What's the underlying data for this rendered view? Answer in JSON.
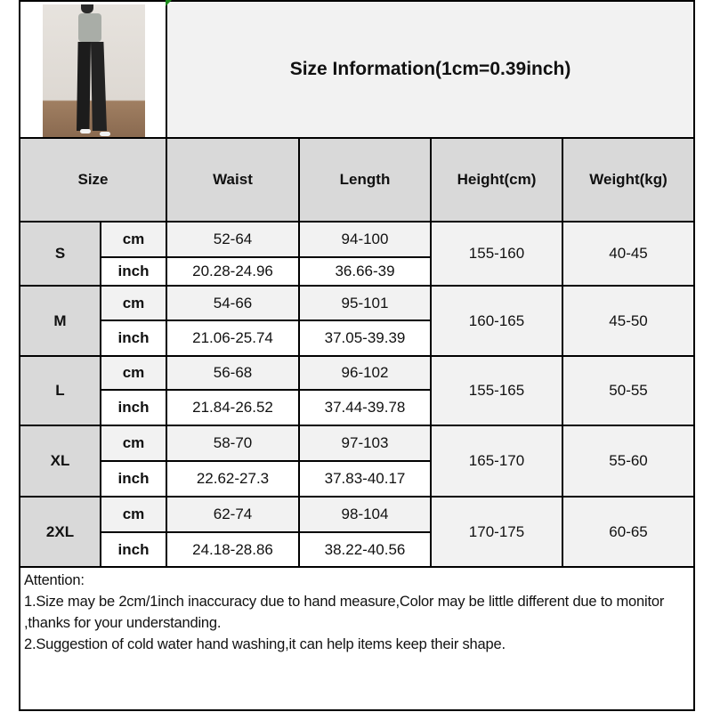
{
  "title": "Size Information(1cm=0.39inch)",
  "headers": {
    "size": "Size",
    "waist": "Waist",
    "length": "Length",
    "height": "Height(cm)",
    "weight": "Weight(kg)"
  },
  "units": {
    "cm": "cm",
    "inch": "inch"
  },
  "rows": [
    {
      "size": "S",
      "waist_cm": "52-64",
      "waist_inch": "20.28-24.96",
      "length_cm": "94-100",
      "length_inch": "36.66-39",
      "height": "155-160",
      "weight": "40-45"
    },
    {
      "size": "M",
      "waist_cm": "54-66",
      "waist_inch": "21.06-25.74",
      "length_cm": "95-101",
      "length_inch": "37.05-39.39",
      "height": "160-165",
      "weight": "45-50"
    },
    {
      "size": "L",
      "waist_cm": "56-68",
      "waist_inch": "21.84-26.52",
      "length_cm": "96-102",
      "length_inch": "37.44-39.78",
      "height": "155-165",
      "weight": "50-55"
    },
    {
      "size": "XL",
      "waist_cm": "58-70",
      "waist_inch": "22.62-27.3",
      "length_cm": "97-103",
      "length_inch": "37.83-40.17",
      "height": "165-170",
      "weight": "55-60"
    },
    {
      "size": "2XL",
      "waist_cm": "62-74",
      "waist_inch": "24.18-28.86",
      "length_cm": "98-104",
      "length_inch": "38.22-40.56",
      "height": "170-175",
      "weight": "60-65"
    }
  ],
  "notes": {
    "heading": "Attention:",
    "line1": "1.Size may be 2cm/1inch inaccuracy due to hand measure,Color may be little different due to monitor ,thanks for your understanding.",
    "line2": "2.Suggestion of cold water hand washing,it can help items keep their shape."
  },
  "colors": {
    "header_gray": "#d9d9d9",
    "light_gray": "#f2f2f2",
    "border": "#000000"
  }
}
